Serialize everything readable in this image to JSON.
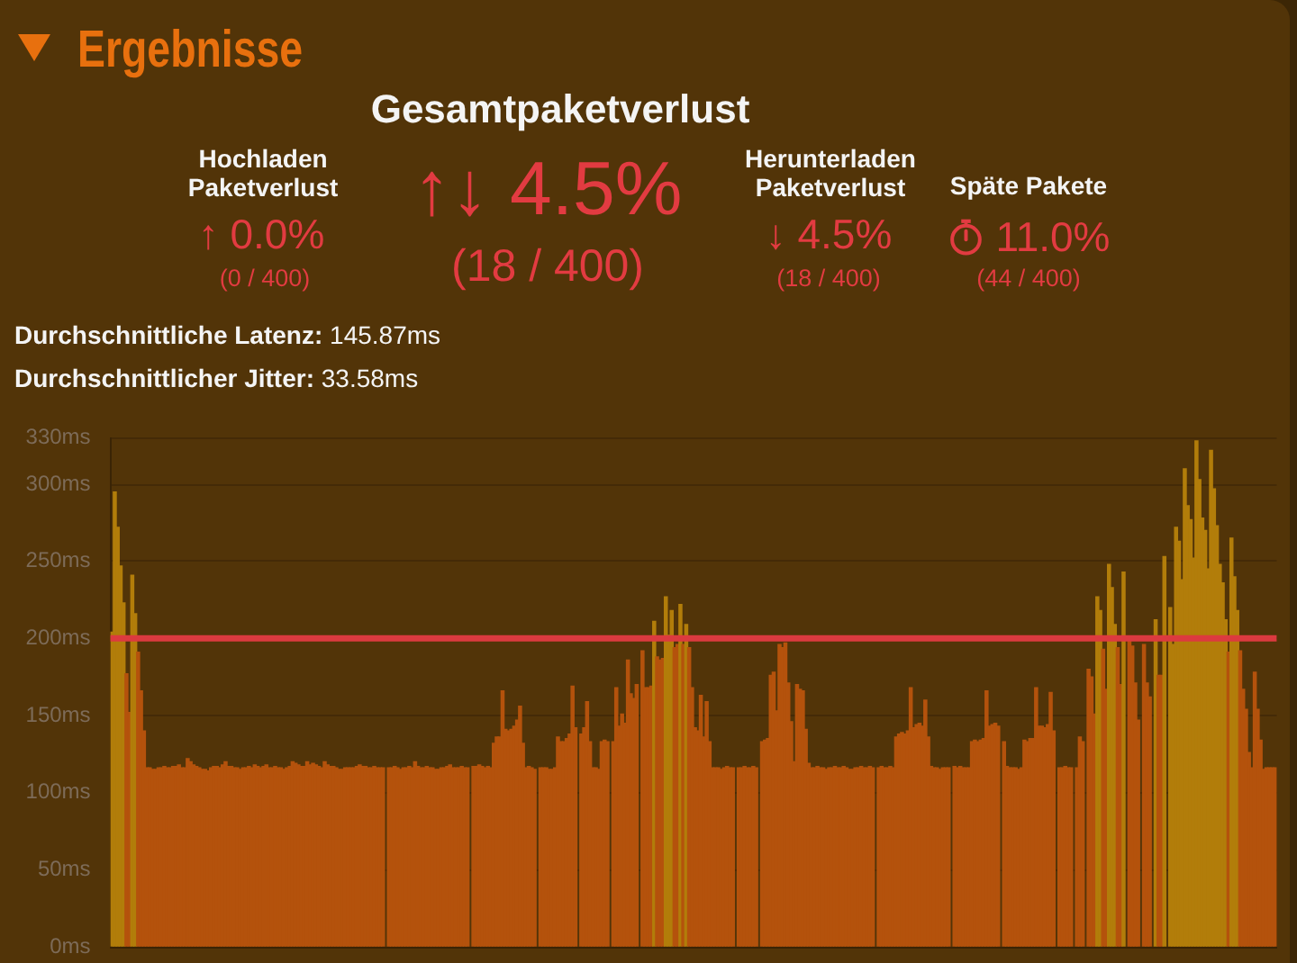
{
  "chart_data": [
    {
      "type": "other",
      "title": "Ergebnisse",
      "annotations": [
        "Gesamtpaketverlust",
        "Hochladen Paketverlust",
        "↑ 0.0%",
        "(0 / 400)",
        "↑↓ 4.5%",
        "(18 / 400)",
        "Herunterladen Paketverlust",
        "↓ 4.5%",
        "(18 / 400)",
        "Späte Pakete",
        "11.0%",
        "(44 / 400)",
        "Durchschnittliche Latenz:",
        "145.87ms",
        "Durchschnittlicher Jitter:",
        "33.58ms"
      ]
    },
    {
      "type": "bar",
      "categories": [
        null,
        null,
        null,
        null,
        null,
        null,
        null,
        null,
        null,
        null,
        null,
        null,
        null,
        null,
        null,
        null,
        null,
        null,
        null,
        null,
        null,
        null,
        null,
        null,
        null,
        null,
        null,
        null,
        null,
        null,
        null,
        null,
        null,
        null,
        null,
        null,
        null,
        null,
        null,
        null,
        null,
        null,
        null,
        null,
        null,
        null,
        null,
        null,
        null,
        null,
        null,
        null,
        null,
        null,
        null,
        null,
        null,
        null,
        null,
        null,
        null,
        null,
        null,
        null,
        null,
        null,
        null,
        null,
        null,
        null,
        null,
        null,
        null,
        null,
        null,
        null,
        null,
        null,
        null,
        null,
        null,
        null,
        null,
        null,
        null,
        null,
        null,
        null,
        null,
        null,
        null,
        null,
        null,
        null,
        null,
        null,
        null,
        null,
        null,
        null,
        null,
        null,
        null,
        null,
        null,
        null,
        null,
        null,
        null,
        null,
        null,
        null,
        null,
        null,
        null,
        null,
        null,
        null,
        null,
        null,
        null,
        null,
        null,
        null,
        null,
        null,
        null,
        null,
        null,
        null,
        null,
        null,
        null,
        null,
        null,
        null,
        null,
        null,
        null,
        null,
        null,
        null,
        null,
        null,
        null,
        null,
        null,
        null,
        null,
        null,
        null,
        null,
        null,
        null,
        null,
        null,
        null,
        null,
        null,
        null,
        null,
        null,
        null,
        null,
        null,
        null,
        null,
        null,
        null,
        null,
        null,
        null,
        null,
        null,
        null,
        null,
        null,
        null,
        null,
        null,
        null,
        null,
        null,
        null,
        null,
        null,
        null,
        null,
        null,
        null,
        null,
        null,
        null,
        null,
        null,
        null,
        null,
        null,
        null,
        null,
        null,
        null,
        null,
        null,
        null,
        null,
        null,
        null,
        null,
        null,
        null,
        null,
        null,
        null,
        null,
        null,
        null,
        null,
        null,
        null,
        null,
        null,
        null,
        null,
        null,
        null,
        null,
        null,
        null,
        null,
        null,
        null,
        null,
        null,
        null,
        null,
        null,
        null,
        null,
        null,
        null,
        null,
        null,
        null,
        null,
        null,
        null,
        null,
        null,
        null,
        null,
        null,
        null,
        null,
        null,
        null,
        null,
        null,
        null,
        null,
        null,
        null,
        null,
        null,
        null,
        null,
        null,
        null,
        null,
        null,
        null,
        null,
        null,
        null,
        null,
        null,
        null,
        null,
        null,
        null,
        null,
        null,
        null,
        null,
        null,
        null,
        null,
        null,
        null,
        null,
        null,
        null,
        null,
        null,
        null,
        null,
        null,
        null,
        null,
        null,
        null,
        null,
        null,
        null,
        null,
        null,
        null,
        null,
        null,
        null,
        null,
        null,
        null,
        null,
        null,
        null,
        null,
        null,
        null,
        null,
        null,
        null,
        null,
        null,
        null,
        null,
        null,
        null,
        null,
        null,
        null,
        null,
        null,
        null,
        null,
        null,
        null,
        null,
        null,
        null,
        null,
        null,
        null,
        null,
        null,
        null,
        null,
        null,
        null,
        null,
        null,
        null,
        null,
        null,
        null,
        null,
        null,
        null,
        null,
        null,
        null,
        null,
        null,
        null,
        null,
        null,
        null,
        null,
        null,
        null,
        null,
        null,
        null,
        null,
        null,
        null,
        null,
        null,
        null,
        null,
        null,
        null,
        null,
        null,
        null,
        null,
        null,
        null,
        null,
        null,
        null,
        null,
        null,
        null,
        null,
        null,
        null,
        null,
        null,
        null
      ],
      "values": [
        204,
        295,
        272,
        247,
        223,
        177,
        152,
        241,
        216,
        191,
        166,
        140,
        116,
        116,
        115,
        115,
        116,
        116,
        117,
        116,
        116,
        117,
        117,
        118,
        116,
        116,
        122,
        120,
        118,
        117,
        116,
        115,
        115,
        114,
        116,
        117,
        117,
        116,
        118,
        120,
        117,
        117,
        116,
        116,
        115,
        116,
        116,
        117,
        116,
        118,
        117,
        116,
        117,
        118,
        116,
        116,
        117,
        116,
        116,
        115,
        116,
        117,
        120,
        119,
        118,
        117,
        117,
        120,
        118,
        119,
        118,
        117,
        116,
        120,
        118,
        117,
        117,
        116,
        115,
        115,
        116,
        116,
        116,
        116,
        117,
        118,
        117,
        117,
        116,
        116,
        117,
        116,
        116,
        116,
        null,
        116,
        116,
        117,
        116,
        115,
        116,
        116,
        117,
        116,
        120,
        117,
        116,
        116,
        117,
        116,
        116,
        115,
        115,
        116,
        116,
        117,
        118,
        116,
        116,
        116,
        117,
        116,
        116,
        null,
        117,
        117,
        118,
        117,
        116,
        117,
        116,
        132,
        136,
        136,
        166,
        141,
        140,
        141,
        143,
        147,
        156,
        132,
        116,
        117,
        116,
        115,
        null,
        116,
        116,
        116,
        115,
        115,
        116,
        136,
        133,
        133,
        135,
        138,
        169,
        142,
        null,
        138,
        142,
        159,
        133,
        116,
        116,
        115,
        133,
        134,
        133,
        null,
        133,
        168,
        143,
        151,
        145,
        186,
        164,
        161,
        170,
        null,
        192,
        168,
        168,
        169,
        211,
        188,
        186,
        187,
        227,
        202,
        218,
        194,
        196,
        222,
        196,
        209,
        194,
        168,
        142,
        140,
        163,
        136,
        159,
        133,
        116,
        116,
        116,
        115,
        116,
        117,
        116,
        116,
        null,
        116,
        116,
        117,
        116,
        116,
        117,
        116,
        null,
        133,
        134,
        135,
        176,
        178,
        153,
        196,
        194,
        197,
        171,
        146,
        120,
        170,
        167,
        166,
        141,
        119,
        116,
        116,
        117,
        116,
        116,
        115,
        116,
        116,
        117,
        116,
        116,
        117,
        116,
        115,
        115,
        116,
        116,
        117,
        116,
        116,
        117,
        116,
        null,
        116,
        117,
        116,
        116,
        117,
        116,
        136,
        138,
        139,
        138,
        140,
        168,
        142,
        144,
        145,
        143,
        160,
        136,
        117,
        116,
        116,
        115,
        116,
        116,
        116,
        null,
        117,
        116,
        117,
        116,
        116,
        116,
        133,
        134,
        133,
        134,
        135,
        166,
        143,
        144,
        145,
        143,
        null,
        133,
        117,
        116,
        116,
        116,
        115,
        116,
        134,
        133,
        135,
        135,
        168,
        143,
        143,
        142,
        144,
        165,
        140,
        null,
        116,
        116,
        117,
        116,
        116,
        null,
        116,
        136,
        133,
        null,
        180,
        175,
        151,
        227,
        218,
        193,
        167,
        248,
        233,
        209,
        194,
        170,
        243,
        null,
        198,
        195,
        171,
        147,
        null,
        196,
        171,
        162,
        null,
        212,
        176,
        176,
        253,
        null,
        220,
        196,
        272,
        263,
        238,
        310,
        286,
        277,
        252,
        328,
        303,
        278,
        270,
        245,
        322,
        297,
        273,
        248,
        236,
        212,
        191,
        265,
        240,
        218,
        192,
        167,
        154,
        126,
        116,
        178,
        154,
        134,
        115,
        116,
        116,
        116,
        116
      ],
      "colors": [
        "#b27d0a",
        "#b27d0a",
        "#b27d0a",
        "#b27d0a",
        "#b27d0a",
        "#b4520c",
        "#b4520c",
        "#b27d0a",
        "#b27d0a",
        "#b4520c",
        "#b4520c",
        "#b4520c",
        "#b4520c",
        "#b4520c",
        "#b4520c",
        "#b4520c",
        "#b4520c",
        "#b4520c",
        "#b4520c",
        "#b4520c",
        "#b4520c",
        "#b4520c",
        "#b4520c",
        "#b4520c",
        "#b4520c",
        "#b4520c",
        "#b4520c",
        "#b4520c",
        "#b4520c",
        "#b4520c",
        "#b4520c",
        "#b4520c",
        "#b4520c",
        "#b4520c",
        "#b4520c",
        "#b4520c",
        "#b4520c",
        "#b4520c",
        "#b4520c",
        "#b4520c",
        "#b4520c",
        "#b4520c",
        "#b4520c",
        "#b4520c",
        "#b4520c",
        "#b4520c",
        "#b4520c",
        "#b4520c",
        "#b4520c",
        "#b4520c",
        "#b4520c",
        "#b4520c",
        "#b4520c",
        "#b4520c",
        "#b4520c",
        "#b4520c",
        "#b4520c",
        "#b4520c",
        "#b4520c",
        "#b4520c",
        "#b4520c",
        "#b4520c",
        "#b4520c",
        "#b4520c",
        "#b4520c",
        "#b4520c",
        "#b4520c",
        "#b4520c",
        "#b4520c",
        "#b4520c",
        "#b4520c",
        "#b4520c",
        "#b4520c",
        "#b4520c",
        "#b4520c",
        "#b4520c",
        "#b4520c",
        "#b4520c",
        "#b4520c",
        "#b4520c",
        "#b4520c",
        "#b4520c",
        "#b4520c",
        "#b4520c",
        "#b4520c",
        "#b4520c",
        "#b4520c",
        "#b4520c",
        "#b4520c",
        "#b4520c",
        "#b4520c",
        "#b4520c",
        "#b4520c",
        "#b4520c",
        "#b4520c",
        "#b4520c",
        "#b4520c",
        "#b4520c",
        "#b4520c",
        "#b4520c",
        "#b4520c",
        "#b4520c",
        "#b4520c",
        "#b4520c",
        "#b4520c",
        "#b4520c",
        "#b4520c",
        "#b4520c",
        "#b4520c",
        "#b4520c",
        "#b4520c",
        "#b4520c",
        "#b4520c",
        "#b4520c",
        "#b4520c",
        "#b4520c",
        "#b4520c",
        "#b4520c",
        "#b4520c",
        "#b4520c",
        "#b4520c",
        "#b4520c",
        "#b4520c",
        "#b4520c",
        "#b4520c",
        "#b4520c",
        "#b4520c",
        "#b4520c",
        "#b4520c",
        "#b4520c",
        "#b4520c",
        "#b4520c",
        "#b4520c",
        "#b4520c",
        "#b4520c",
        "#b4520c",
        "#b4520c",
        "#b4520c",
        "#b4520c",
        "#b4520c",
        "#b4520c",
        "#b4520c",
        "#b4520c",
        "#b4520c",
        "#b4520c",
        "#b4520c",
        "#b4520c",
        "#b4520c",
        "#b4520c",
        "#b4520c",
        "#b4520c",
        "#b4520c",
        "#b4520c",
        "#b4520c",
        "#b4520c",
        "#b4520c",
        "#b4520c",
        "#b4520c",
        "#b4520c",
        "#b4520c",
        "#b4520c",
        "#b4520c",
        "#b4520c",
        "#b4520c",
        "#b4520c",
        "#b4520c",
        "#b4520c",
        "#b4520c",
        "#b4520c",
        "#b4520c",
        "#b4520c",
        "#b4520c",
        "#b4520c",
        "#b4520c",
        "#b4520c",
        "#b4520c",
        "#b4520c",
        "#b4520c",
        "#b4520c",
        "#b4520c",
        "#b4520c",
        "#b4520c",
        "#b4520c",
        "#b4520c",
        "#b4520c",
        "#b4520c",
        "#b27d0a",
        "#b4520c",
        "#b4520c",
        "#b4520c",
        "#b27d0a",
        "#b27d0a",
        "#b27d0a",
        "#b4520c",
        "#b4520c",
        "#b27d0a",
        "#b4520c",
        "#b27d0a",
        "#b4520c",
        "#b4520c",
        "#b4520c",
        "#b4520c",
        "#b4520c",
        "#b4520c",
        "#b4520c",
        "#b4520c",
        "#b4520c",
        "#b4520c",
        "#b4520c",
        "#b4520c",
        "#b4520c",
        "#b4520c",
        "#b4520c",
        "#b4520c",
        "#b4520c",
        "#b4520c",
        "#b4520c",
        "#b4520c",
        "#b4520c",
        "#b4520c",
        "#b4520c",
        "#b4520c",
        "#b4520c",
        "#b4520c",
        "#b4520c",
        "#b4520c",
        "#b4520c",
        "#b4520c",
        "#b4520c",
        "#b4520c",
        "#b4520c",
        "#b4520c",
        "#b4520c",
        "#b4520c",
        "#b4520c",
        "#b4520c",
        "#b4520c",
        "#b4520c",
        "#b4520c",
        "#b4520c",
        "#b4520c",
        "#b4520c",
        "#b4520c",
        "#b4520c",
        "#b4520c",
        "#b4520c",
        "#b4520c",
        "#b4520c",
        "#b4520c",
        "#b4520c",
        "#b4520c",
        "#b4520c",
        "#b4520c",
        "#b4520c",
        "#b4520c",
        "#b4520c",
        "#b4520c",
        "#b4520c",
        "#b4520c",
        "#b4520c",
        "#b4520c",
        "#b4520c",
        "#b4520c",
        "#b4520c",
        "#b4520c",
        "#b4520c",
        "#b4520c",
        "#b4520c",
        "#b4520c",
        "#b4520c",
        "#b4520c",
        "#b4520c",
        "#b4520c",
        "#b4520c",
        "#b4520c",
        "#b4520c",
        "#b4520c",
        "#b4520c",
        "#b4520c",
        "#b4520c",
        "#b4520c",
        "#b4520c",
        "#b4520c",
        "#b4520c",
        "#b4520c",
        "#b4520c",
        "#b4520c",
        "#b4520c",
        "#b4520c",
        "#b4520c",
        "#b4520c",
        "#b4520c",
        "#b4520c",
        "#b4520c",
        "#b4520c",
        "#b4520c",
        "#b4520c",
        "#b4520c",
        "#b4520c",
        "#b4520c",
        "#b4520c",
        "#b4520c",
        "#b4520c",
        "#b4520c",
        "#b4520c",
        "#b4520c",
        "#b4520c",
        "#b4520c",
        "#b4520c",
        "#b4520c",
        "#b4520c",
        "#b4520c",
        "#b4520c",
        "#b4520c",
        "#b4520c",
        "#b4520c",
        "#b4520c",
        "#b4520c",
        "#b4520c",
        "#b4520c",
        "#b4520c",
        "#b4520c",
        "#b4520c",
        "#b4520c",
        "#b4520c",
        "#b4520c",
        "#b4520c",
        "#b4520c",
        "#b4520c",
        "#b4520c",
        "#b4520c",
        "#b4520c",
        "#b4520c",
        "#b4520c",
        "#b4520c",
        "#b4520c",
        "#b4520c",
        "#b4520c",
        "#b27d0a",
        "#b27d0a",
        "#b4520c",
        "#b4520c",
        "#b27d0a",
        "#b27d0a",
        "#b27d0a",
        "#b4520c",
        "#b4520c",
        "#b27d0a",
        "#b4520c",
        "#b4520c",
        "#b4520c",
        "#b4520c",
        "#b4520c",
        "#b4520c",
        "#b4520c",
        "#b4520c",
        "#b4520c",
        "#b4520c",
        "#b27d0a",
        "#b4520c",
        "#b4520c",
        "#b27d0a",
        "#b4520c",
        "#b27d0a",
        "#b27d0a",
        "#b27d0a",
        "#b27d0a",
        "#b27d0a",
        "#b27d0a",
        "#b27d0a",
        "#b27d0a",
        "#b27d0a",
        "#b27d0a",
        "#b27d0a",
        "#b27d0a",
        "#b27d0a",
        "#b27d0a",
        "#b27d0a",
        "#b27d0a",
        "#b27d0a",
        "#b27d0a",
        "#b27d0a",
        "#b27d0a",
        "#b4520c",
        "#b27d0a",
        "#b27d0a",
        "#b27d0a",
        "#b4520c",
        "#b4520c",
        "#b4520c",
        "#b4520c",
        "#b4520c",
        "#b4520c",
        "#b4520c",
        "#b4520c",
        "#b4520c",
        "#b4520c",
        "#b4520c",
        "#b4520c",
        "#b4520c"
      ],
      "ylim": [
        0,
        330
      ],
      "yticks": [
        {
          "value": 0,
          "label": "0ms"
        },
        {
          "value": 50,
          "label": "50ms"
        },
        {
          "value": 100,
          "label": "100ms"
        },
        {
          "value": 150,
          "label": "150ms"
        },
        {
          "value": 200,
          "label": "200ms"
        },
        {
          "value": 250,
          "label": "250ms"
        },
        {
          "value": 300,
          "label": "300ms"
        },
        {
          "value": 330,
          "label": "330ms"
        }
      ],
      "grid": "y",
      "tick_labels": "y",
      "ref_lines": [
        {
          "axis": "y",
          "value": 200,
          "color": "#dc3a3f"
        }
      ]
    }
  ]
}
